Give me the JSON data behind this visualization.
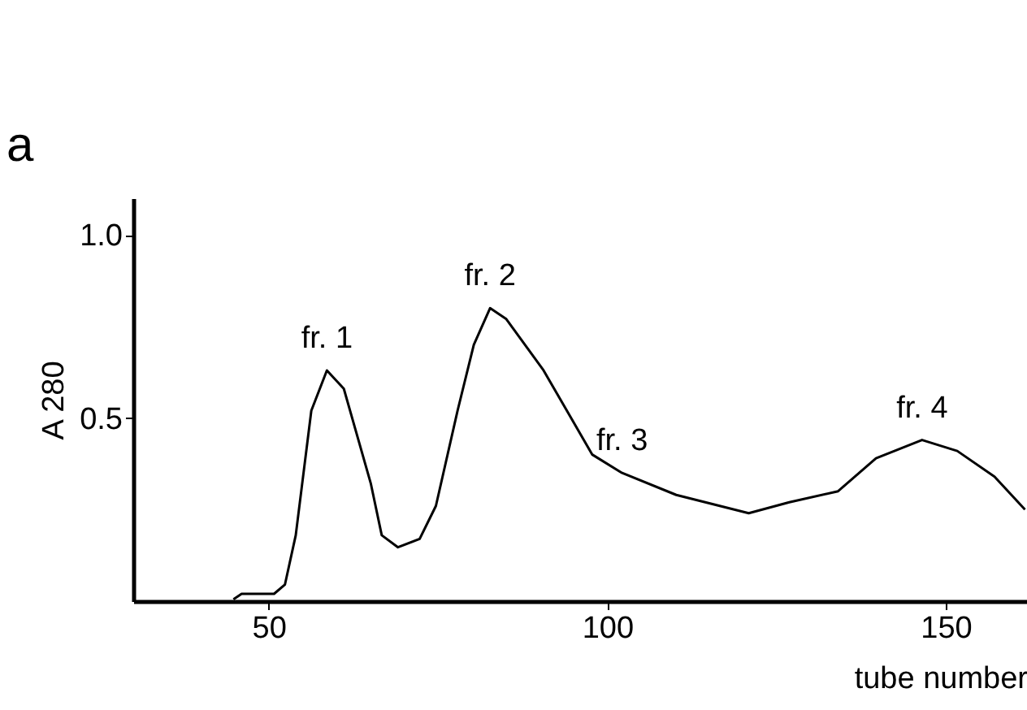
{
  "chart_data": {
    "type": "line",
    "xlabel": "tube number",
    "ylabel": "A 280",
    "x": [
      44.8,
      46,
      50.8,
      52.4,
      54,
      56.3,
      58.6,
      61.1,
      65.1,
      66.7,
      69.1,
      72.3,
      74.7,
      77.9,
      80.3,
      82.7,
      85.1,
      90.6,
      97.8,
      102.2,
      110.2,
      120.9,
      126.9,
      134.1,
      139.7,
      146.5,
      151.7,
      157.2,
      161.7
    ],
    "series": [
      {
        "color": "#000000",
        "values": [
          0.005,
          0.02,
          0.02,
          0.045,
          0.18,
          0.52,
          0.63,
          0.58,
          0.32,
          0.18,
          0.147,
          0.17,
          0.26,
          0.52,
          0.7,
          0.8,
          0.77,
          0.63,
          0.4,
          0.35,
          0.29,
          0.24,
          0.27,
          0.3,
          0.39,
          0.44,
          0.41,
          0.34,
          0.25
        ]
      }
    ],
    "xlim": [
      30,
      162
    ],
    "xticks": [
      50,
      100,
      150
    ],
    "ylim": [
      0,
      1.1
    ],
    "yticks": [
      0.5,
      {
        "value": 1,
        "label": "1.0"
      }
    ],
    "annotations": [
      "a",
      {
        "text": "fr. 1",
        "x": 58.6,
        "y": 0.63
      },
      {
        "text": "fr. 2",
        "x": 82.7,
        "y": 0.8
      },
      {
        "text": "fr. 3",
        "x": 102.2,
        "y": 0.35
      },
      {
        "text": "fr. 4",
        "x": 146.5,
        "y": 0.44
      }
    ],
    "grid": false,
    "marker": "none",
    "line_style": "solid"
  }
}
